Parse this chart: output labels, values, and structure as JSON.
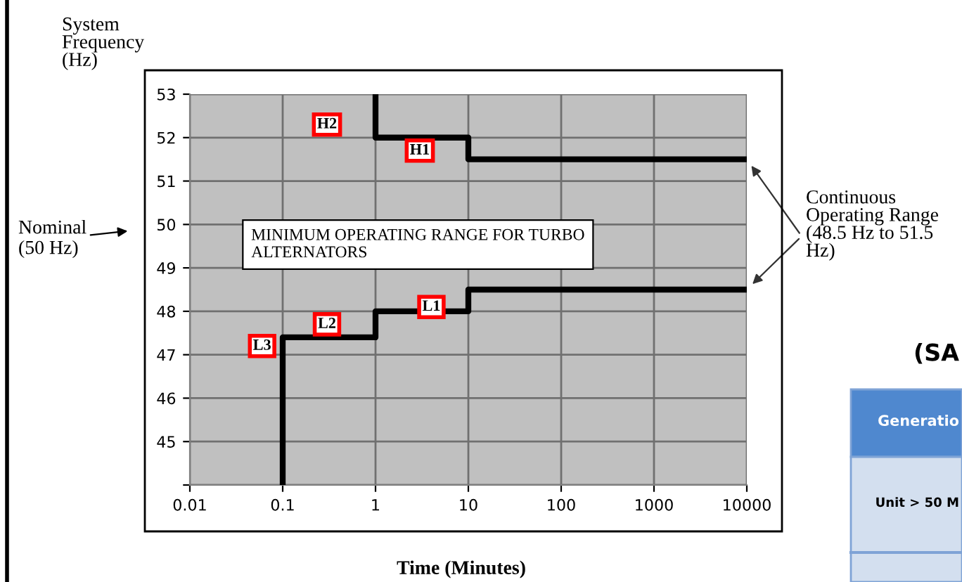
{
  "chart_data": {
    "type": "line",
    "ylabel": "System Frequency (Hz)",
    "xlabel": "Time (Minutes)",
    "series": [
      {
        "color": "#000000",
        "x": [
          1,
          1,
          10,
          10,
          10000
        ],
        "values": [
          53,
          52,
          52,
          51.5,
          51.5
        ]
      },
      {
        "color": "#000000",
        "x": [
          0.1,
          0.1,
          1,
          1,
          10,
          10,
          10000
        ],
        "values": [
          44,
          47.4,
          47.4,
          48,
          48,
          48.5,
          48.5
        ]
      }
    ],
    "log": "x",
    "xlim": [
      0.01,
      10000
    ],
    "xticks": [
      {
        "value": 0.01,
        "label": "0.01"
      },
      {
        "value": 0.1,
        "label": "0.1"
      },
      {
        "value": 1,
        "label": "1"
      },
      {
        "value": 10,
        "label": "10"
      },
      {
        "value": 100,
        "label": "100"
      },
      {
        "value": 1000,
        "label": "1000"
      },
      {
        "value": 10000,
        "label": "10000"
      }
    ],
    "ylim": [
      44,
      53
    ],
    "yticks": [
      {
        "value": 44,
        "label": null
      },
      45,
      46,
      47,
      48,
      49,
      50,
      51,
      52,
      53
    ],
    "grid": true,
    "legend": false,
    "marker": "none",
    "line_style": "solid",
    "annotations": [
      {
        "text": "H2",
        "x": 0.3,
        "y": 52.3
      },
      {
        "text": "H1",
        "x": 3,
        "y": 51.7
      },
      {
        "text": "L3",
        "x": 0.06,
        "y": 47.2
      },
      {
        "text": "L2",
        "x": 0.3,
        "y": 47.7
      },
      {
        "text": "L1",
        "x": 4,
        "y": 48.1
      },
      "MINIMUM OPERATING RANGE FOR TURBO ALTERNATORS",
      "Nominal (50 Hz)",
      "Continuous Operating Range (48.5 Hz to 51.5 Hz)",
      "(SA",
      "Generatio",
      "Unit > 50 M"
    ]
  }
}
